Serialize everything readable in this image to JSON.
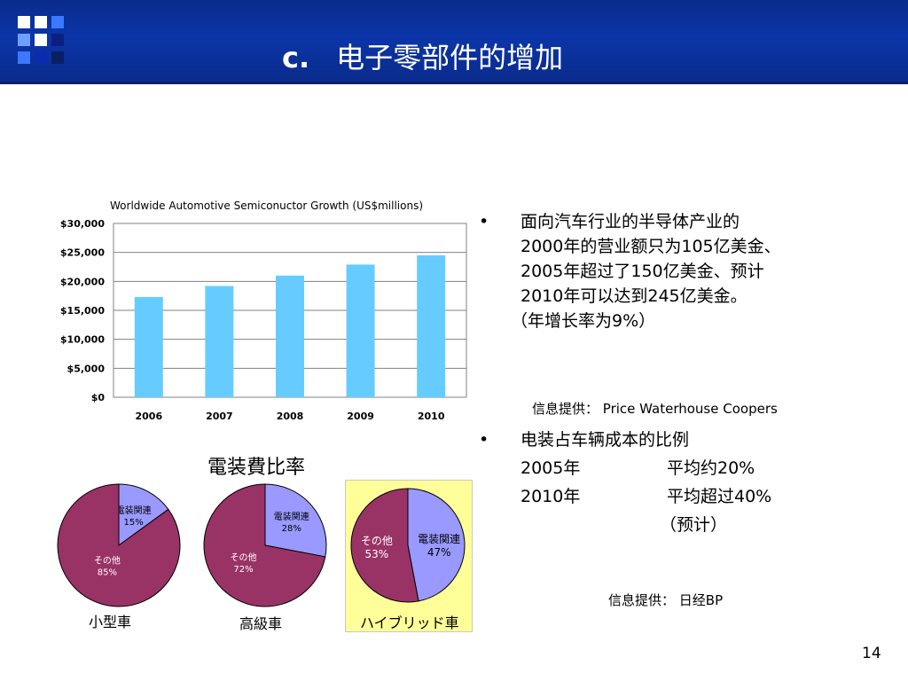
{
  "slide": {
    "title_prefix": "c.",
    "title": "电子零部件的增加",
    "page_number": "14"
  },
  "chart_data": [
    {
      "type": "bar",
      "title": "Worldwide Automotive Semiconuctor Growth (US$millions)",
      "categories": [
        "2006",
        "2007",
        "2008",
        "2009",
        "2010"
      ],
      "values": [
        17300,
        19200,
        21000,
        22900,
        24500
      ],
      "ylim": [
        0,
        30000
      ],
      "yticks": [
        "$0",
        "$5,000",
        "$10,000",
        "$15,000",
        "$20,000",
        "$25,000",
        "$30,000"
      ],
      "ytick_values": [
        0,
        5000,
        10000,
        15000,
        20000,
        25000,
        30000
      ],
      "grid": true,
      "bar_color": "#66ccff"
    },
    {
      "type": "pie",
      "title": "電装費比率",
      "charts": [
        {
          "label": "小型車",
          "slices": [
            {
              "name": "電装関連",
              "value": 15,
              "pct_label": "15%",
              "color": "#9999ff"
            },
            {
              "name": "その他",
              "value": 85,
              "pct_label": "85%",
              "color": "#993366"
            }
          ]
        },
        {
          "label": "高級車",
          "slices": [
            {
              "name": "電装関連",
              "value": 28,
              "pct_label": "28%",
              "color": "#9999ff"
            },
            {
              "name": "その他",
              "value": 72,
              "pct_label": "72%",
              "color": "#993366"
            }
          ]
        },
        {
          "label": "ハイブリッド車",
          "highlight": true,
          "slices": [
            {
              "name": "電装関連",
              "value": 47,
              "pct_label": "47%",
              "color": "#9999ff"
            },
            {
              "name": "その他",
              "value": 53,
              "pct_label": "53%",
              "color": "#993366"
            }
          ]
        }
      ]
    }
  ],
  "bullets": {
    "symbol": "•",
    "b1": {
      "lines": [
        "面向汽车行业的半导体产业的",
        "2000年的营业额只为105亿美金、",
        "2005年超过了150亿美金、预计",
        "2010年可以达到245亿美金。",
        "（年增长率为9%）"
      ],
      "credit_label": "信息提供：",
      "credit_value": "Price Waterhouse Coopers"
    },
    "b2": {
      "line1": "电装占车辆成本的比例",
      "row1_year": "2005年",
      "row1_value": "平均约20%",
      "row2_year": "2010年",
      "row2_value": "平均超过40%",
      "row3_note": "（预计）",
      "credit_label": "信息提供：",
      "credit_value": "日经BP"
    }
  },
  "colors": {
    "header": "#0b35a8",
    "bar": "#66ccff",
    "slice_electronics": "#9999ff",
    "slice_other": "#993366",
    "highlight_box": "#ffff99"
  }
}
